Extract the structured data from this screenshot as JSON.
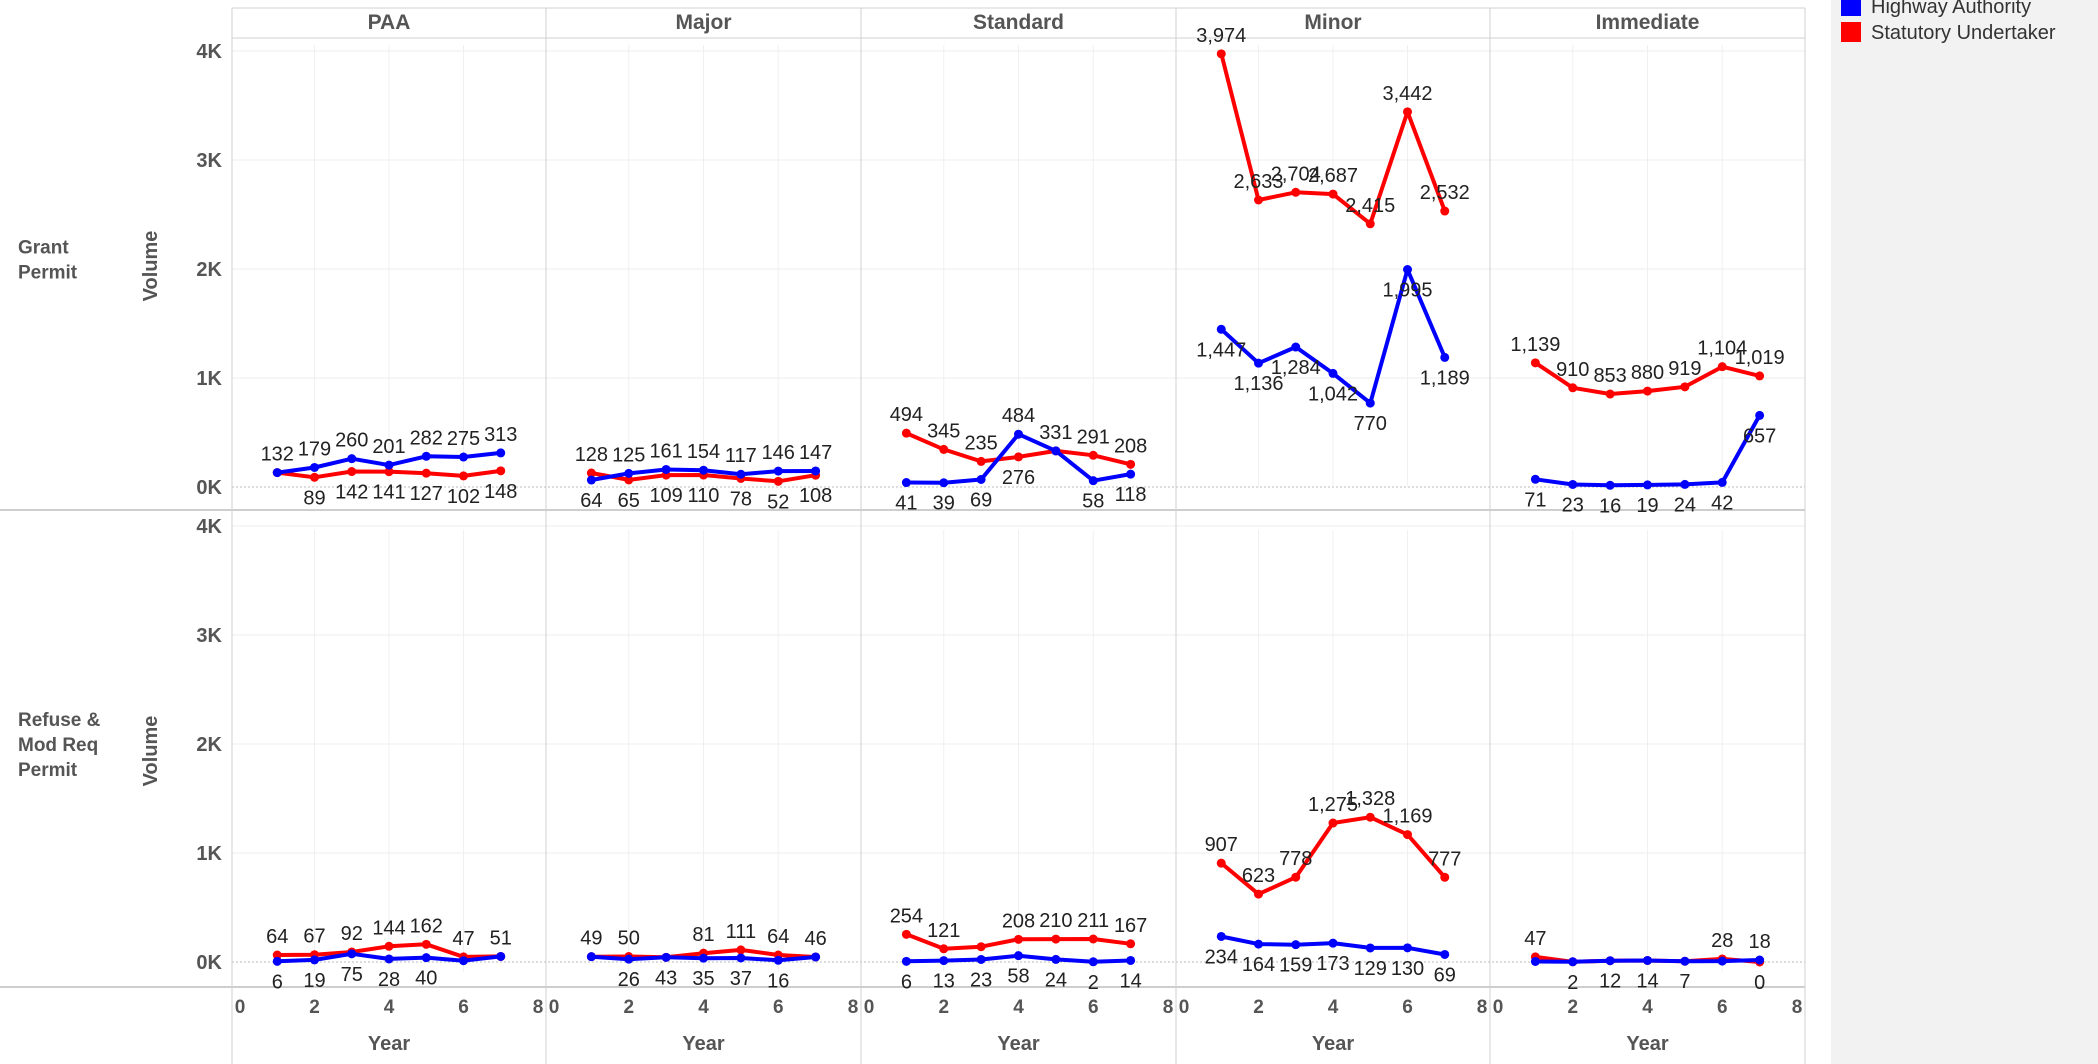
{
  "chart_data": {
    "type": "line",
    "columns": [
      "PAA",
      "Major",
      "Standard",
      "Minor",
      "Immediate"
    ],
    "rows": [
      {
        "label": [
          "Grant",
          "Permit"
        ],
        "ylabel": "Volume"
      },
      {
        "label": [
          "Refuse &",
          "Mod Req",
          "Permit"
        ],
        "ylabel": "Volume"
      }
    ],
    "xlabel": "Year",
    "xlim": [
      0,
      8
    ],
    "xticks": [
      "0",
      "2",
      "4",
      "6",
      "8"
    ],
    "ylim": [
      0,
      4000
    ],
    "yticks": [
      {
        "value": 0,
        "label": "0K"
      },
      {
        "value": 1000,
        "label": "1K"
      },
      {
        "value": 2000,
        "label": "2K"
      },
      {
        "value": 3000,
        "label": "3K"
      },
      {
        "value": 4000,
        "label": "4K"
      }
    ],
    "legend": {
      "position": "top-right",
      "entries": [
        {
          "name": "Highway Authority",
          "color": "#0000ff"
        },
        {
          "name": "Statutory Undertaker",
          "color": "#ff0000"
        }
      ]
    },
    "series_colors": {
      "ha": "#0000ff",
      "su": "#ff0000"
    },
    "x": [
      1,
      2,
      3,
      4,
      5,
      6,
      7
    ],
    "panels": [
      {
        "row": 0,
        "column": "PAA",
        "ha": [
          132,
          179,
          260,
          201,
          282,
          275,
          313
        ],
        "su": [
          132,
          89,
          142,
          141,
          127,
          102,
          148
        ],
        "ha_labels": [
          "132",
          "179",
          "260",
          "201",
          "282",
          "275",
          "313"
        ],
        "su_labels": [
          "",
          "89",
          "142",
          "141",
          "127",
          "102",
          "148"
        ]
      },
      {
        "row": 0,
        "column": "Major",
        "ha": [
          64,
          125,
          161,
          154,
          117,
          146,
          147
        ],
        "su": [
          128,
          65,
          109,
          110,
          78,
          52,
          108
        ],
        "ha_labels": [
          "64",
          "125",
          "161",
          "154",
          "117",
          "146",
          "147"
        ],
        "su_labels": [
          "128",
          "65",
          "109",
          "110",
          "78",
          "52",
          "108"
        ]
      },
      {
        "row": 0,
        "column": "Standard",
        "ha": [
          41,
          39,
          69,
          484,
          331,
          58,
          118
        ],
        "su": [
          494,
          345,
          235,
          276,
          331,
          291,
          208
        ],
        "ha_labels": [
          "41",
          "39",
          "69",
          "484",
          "331",
          "58",
          "118"
        ],
        "su_labels": [
          "494",
          "345",
          "235",
          "276",
          "",
          "291",
          "208"
        ]
      },
      {
        "row": 0,
        "column": "Minor",
        "ha": [
          1447,
          1136,
          1284,
          1042,
          770,
          1995,
          1189
        ],
        "su": [
          3974,
          2633,
          2704,
          2687,
          2415,
          3442,
          2532
        ],
        "ha_labels": [
          "1,447",
          "1,136",
          "1,284",
          "1,042",
          "770",
          "1,995",
          "1,189"
        ],
        "su_labels": [
          "3,974",
          "2,633",
          "2,704",
          "2,687",
          "2,415",
          "3,442",
          "2,532"
        ]
      },
      {
        "row": 0,
        "column": "Immediate",
        "ha": [
          71,
          23,
          16,
          19,
          24,
          42,
          657
        ],
        "su": [
          1139,
          910,
          853,
          880,
          919,
          1104,
          1019
        ],
        "ha_labels": [
          "71",
          "23",
          "16",
          "19",
          "24",
          "42",
          "657"
        ],
        "su_labels": [
          "1,139",
          "910",
          "853",
          "880",
          "919",
          "1,104",
          "1,019"
        ]
      },
      {
        "row": 1,
        "column": "PAA",
        "ha": [
          6,
          19,
          75,
          28,
          40,
          12,
          51
        ],
        "su": [
          64,
          67,
          92,
          144,
          162,
          47,
          51
        ],
        "ha_labels": [
          "6",
          "19",
          "75",
          "28",
          "40",
          "",
          "51"
        ],
        "su_labels": [
          "64",
          "67",
          "92",
          "144",
          "162",
          "47",
          ""
        ]
      },
      {
        "row": 1,
        "column": "Major",
        "ha": [
          49,
          26,
          43,
          35,
          37,
          16,
          46
        ],
        "su": [
          49,
          50,
          43,
          81,
          111,
          64,
          46
        ],
        "ha_labels": [
          "49",
          "26",
          "",
          "35",
          "37",
          "16",
          "46"
        ],
        "su_labels": [
          "",
          "50",
          "43",
          "81",
          "111",
          "64",
          ""
        ]
      },
      {
        "row": 1,
        "column": "Standard",
        "ha": [
          6,
          13,
          23,
          58,
          24,
          2,
          14
        ],
        "su": [
          254,
          121,
          140,
          208,
          210,
          211,
          167
        ],
        "ha_labels": [
          "6",
          "13",
          "23",
          "58",
          "24",
          "2",
          "14"
        ],
        "su_labels": [
          "254",
          "121",
          "",
          "208",
          "210",
          "211",
          "167"
        ]
      },
      {
        "row": 1,
        "column": "Minor",
        "ha": [
          234,
          164,
          159,
          173,
          129,
          130,
          69
        ],
        "su": [
          907,
          623,
          778,
          1275,
          1328,
          1169,
          777
        ],
        "ha_labels": [
          "234",
          "164",
          "159",
          "173",
          "129",
          "130",
          "69"
        ],
        "su_labels": [
          "907",
          "623",
          "778",
          "1,275",
          "1,328",
          "1,169",
          "777"
        ]
      },
      {
        "row": 1,
        "column": "Immediate",
        "ha": [
          5,
          2,
          12,
          14,
          7,
          8,
          18
        ],
        "su": [
          47,
          2,
          12,
          14,
          7,
          28,
          0
        ],
        "ha_labels": [
          "",
          "",
          "",
          "",
          "",
          "",
          "18"
        ],
        "su_labels": [
          "47",
          "2",
          "12",
          "14",
          "7",
          "28",
          "0"
        ]
      }
    ]
  }
}
